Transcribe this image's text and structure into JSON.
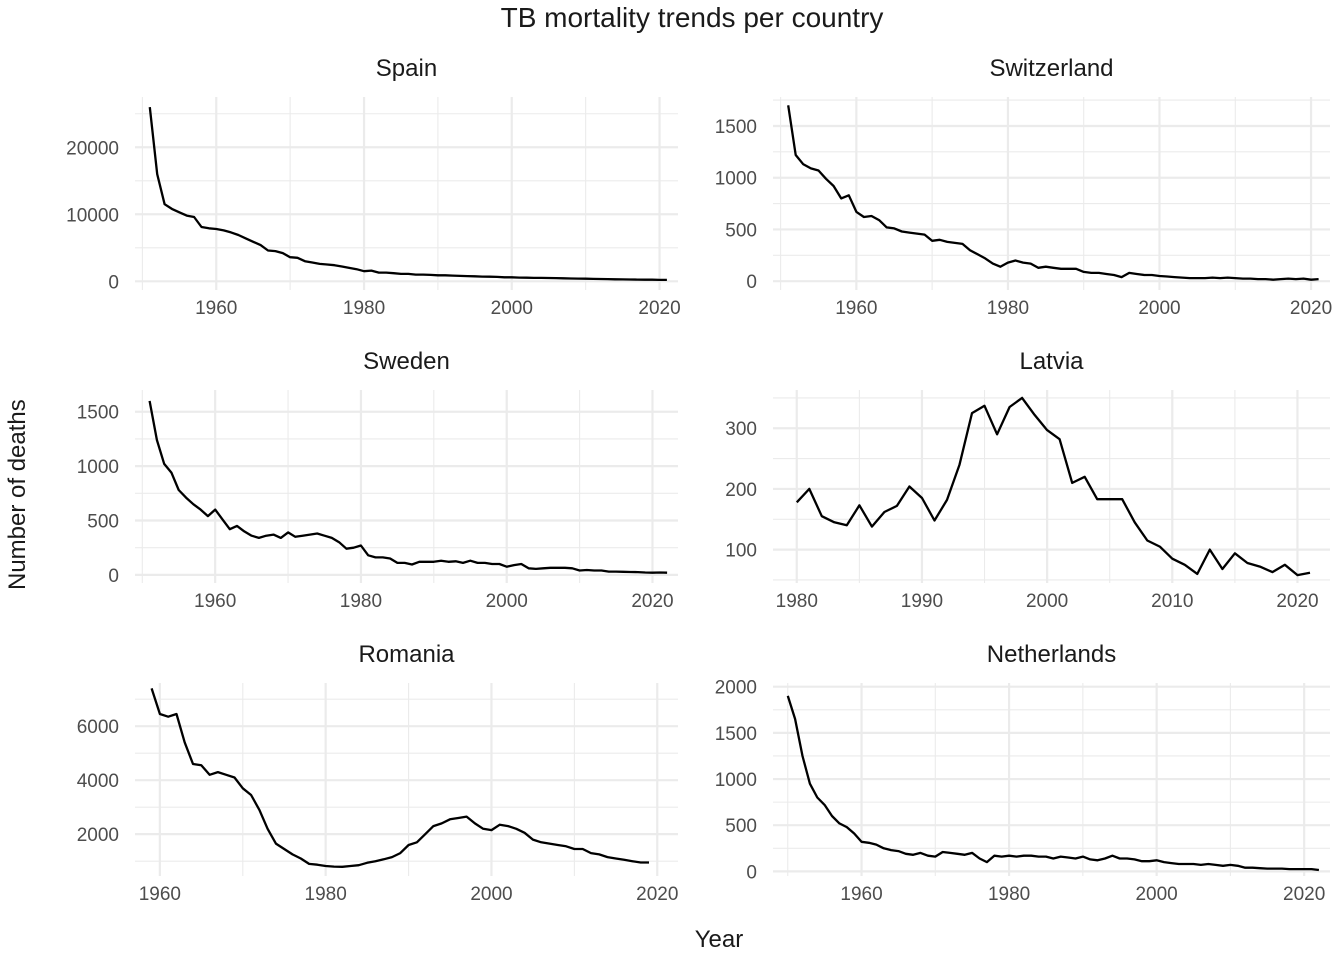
{
  "chart_data": {
    "type": "line",
    "title": "TB mortality trends per country",
    "xlabel": "Year",
    "ylabel": "Number of deaths",
    "grid": true,
    "panels": [
      {
        "name": "Spain",
        "xlim": [
          1949,
          2022.5
        ],
        "ylim": [
          -1300,
          27500
        ],
        "xticks": [
          1960,
          1980,
          2000,
          2020
        ],
        "yticks": [
          0,
          10000,
          20000
        ],
        "series": [
          {
            "x": [
              1951,
              1952,
              1953,
              1954,
              1955,
              1956,
              1957,
              1958,
              1959,
              1960,
              1961,
              1962,
              1963,
              1964,
              1965,
              1966,
              1967,
              1968,
              1969,
              1970,
              1971,
              1972,
              1973,
              1974,
              1975,
              1976,
              1977,
              1978,
              1979,
              1980,
              1981,
              1982,
              1983,
              1984,
              1985,
              1986,
              1987,
              1988,
              1989,
              1990,
              1991,
              1992,
              1993,
              1994,
              1995,
              1996,
              1997,
              1998,
              1999,
              2000,
              2001,
              2002,
              2003,
              2004,
              2005,
              2006,
              2007,
              2008,
              2009,
              2010,
              2011,
              2012,
              2013,
              2014,
              2015,
              2016,
              2017,
              2018,
              2019,
              2020,
              2021
            ],
            "y": [
              26000,
              16000,
              11500,
              10800,
              10300,
              9800,
              9600,
              8100,
              7900,
              7800,
              7600,
              7300,
              6900,
              6400,
              5900,
              5400,
              4600,
              4500,
              4200,
              3600,
              3500,
              3000,
              2800,
              2600,
              2500,
              2400,
              2200,
              2000,
              1800,
              1500,
              1600,
              1300,
              1300,
              1200,
              1100,
              1100,
              1000,
              1000,
              950,
              900,
              900,
              850,
              800,
              780,
              750,
              700,
              680,
              650,
              600,
              600,
              550,
              530,
              510,
              500,
              490,
              470,
              450,
              420,
              400,
              380,
              360,
              340,
              320,
              300,
              280,
              260,
              250,
              240,
              230,
              210,
              200
            ]
          }
        ]
      },
      {
        "name": "Switzerland",
        "xlim": [
          1949,
          2022.5
        ],
        "ylim": [
          -85,
          1780
        ],
        "xticks": [
          1960,
          1980,
          2000,
          2020
        ],
        "yticks": [
          0,
          500,
          1000,
          1500
        ],
        "series": [
          {
            "x": [
              1951,
              1952,
              1953,
              1954,
              1955,
              1956,
              1957,
              1958,
              1959,
              1960,
              1961,
              1962,
              1963,
              1964,
              1965,
              1966,
              1967,
              1968,
              1969,
              1970,
              1971,
              1972,
              1973,
              1974,
              1975,
              1976,
              1977,
              1978,
              1979,
              1980,
              1981,
              1982,
              1983,
              1984,
              1985,
              1986,
              1987,
              1988,
              1989,
              1990,
              1991,
              1992,
              1993,
              1994,
              1995,
              1996,
              1997,
              1998,
              1999,
              2000,
              2001,
              2002,
              2003,
              2004,
              2005,
              2006,
              2007,
              2008,
              2009,
              2010,
              2011,
              2012,
              2013,
              2014,
              2015,
              2016,
              2017,
              2018,
              2019,
              2020,
              2021
            ],
            "y": [
              1700,
              1220,
              1130,
              1090,
              1070,
              990,
              920,
              800,
              830,
              670,
              620,
              630,
              590,
              520,
              510,
              480,
              470,
              460,
              450,
              390,
              400,
              380,
              370,
              360,
              300,
              260,
              220,
              170,
              140,
              180,
              200,
              180,
              170,
              130,
              140,
              130,
              120,
              120,
              120,
              90,
              80,
              80,
              70,
              60,
              40,
              80,
              70,
              60,
              60,
              50,
              45,
              40,
              35,
              30,
              30,
              30,
              35,
              30,
              35,
              30,
              25,
              25,
              20,
              20,
              15,
              20,
              25,
              20,
              25,
              15,
              20
            ]
          }
        ]
      },
      {
        "name": "Sweden",
        "xlim": [
          1949,
          2023.5
        ],
        "ylim": [
          -75,
          1700
        ],
        "xticks": [
          1960,
          1980,
          2000,
          2020
        ],
        "yticks": [
          0,
          500,
          1000,
          1500
        ],
        "series": [
          {
            "x": [
              1951,
              1952,
              1953,
              1954,
              1955,
              1956,
              1957,
              1958,
              1959,
              1960,
              1961,
              1962,
              1963,
              1964,
              1965,
              1966,
              1967,
              1968,
              1969,
              1970,
              1971,
              1972,
              1973,
              1974,
              1975,
              1976,
              1977,
              1978,
              1979,
              1980,
              1981,
              1982,
              1983,
              1984,
              1985,
              1986,
              1987,
              1988,
              1989,
              1990,
              1991,
              1992,
              1993,
              1994,
              1995,
              1996,
              1997,
              1998,
              1999,
              2000,
              2001,
              2002,
              2003,
              2004,
              2005,
              2006,
              2007,
              2008,
              2009,
              2010,
              2011,
              2012,
              2013,
              2014,
              2015,
              2016,
              2017,
              2018,
              2019,
              2020,
              2021,
              2022
            ],
            "y": [
              1600,
              1240,
              1020,
              940,
              780,
              710,
              650,
              600,
              540,
              600,
              510,
              420,
              450,
              400,
              360,
              340,
              360,
              370,
              340,
              390,
              350,
              360,
              370,
              380,
              360,
              340,
              300,
              240,
              250,
              270,
              180,
              160,
              160,
              150,
              110,
              110,
              95,
              120,
              120,
              120,
              130,
              120,
              125,
              110,
              130,
              110,
              110,
              100,
              100,
              75,
              90,
              100,
              60,
              55,
              60,
              65,
              65,
              65,
              60,
              40,
              45,
              40,
              40,
              30,
              30,
              28,
              26,
              25,
              22,
              20,
              22,
              20
            ]
          }
        ]
      },
      {
        "name": "Latvia",
        "xlim": [
          1978.1,
          2022.6
        ],
        "ylim": [
          45,
          363
        ],
        "xticks": [
          1980,
          1990,
          2000,
          2010,
          2020
        ],
        "yticks": [
          100,
          200,
          300
        ],
        "series": [
          {
            "x": [
              1980,
              1981,
              1982,
              1983,
              1984,
              1985,
              1986,
              1987,
              1988,
              1989,
              1990,
              1991,
              1992,
              1993,
              1994,
              1995,
              1996,
              1997,
              1998,
              1999,
              2000,
              2001,
              2002,
              2003,
              2004,
              2005,
              2006,
              2007,
              2008,
              2009,
              2010,
              2011,
              2012,
              2013,
              2014,
              2015,
              2016,
              2017,
              2018,
              2019,
              2020,
              2021
            ],
            "y": [
              178,
              200,
              155,
              145,
              140,
              173,
              138,
              162,
              172,
              204,
              185,
              148,
              182,
              240,
              325,
              337,
              290,
              335,
              350,
              322,
              297,
              282,
              210,
              220,
              183,
              183,
              183,
              145,
              115,
              105,
              85,
              75,
              60,
              100,
              68,
              94,
              78,
              72,
              63,
              75,
              58,
              62
            ]
          }
        ]
      },
      {
        "name": "Romania",
        "xlim": [
          1957,
          2022.5
        ],
        "ylim": [
          450,
          7600
        ],
        "xticks": [
          1960,
          1980,
          2000,
          2020
        ],
        "yticks": [
          2000,
          4000,
          6000
        ],
        "series": [
          {
            "x": [
              1959,
              1960,
              1961,
              1962,
              1963,
              1964,
              1965,
              1966,
              1967,
              1968,
              1969,
              1970,
              1971,
              1972,
              1973,
              1974,
              1975,
              1976,
              1977,
              1978,
              1979,
              1980,
              1981,
              1982,
              1983,
              1984,
              1985,
              1986,
              1987,
              1988,
              1989,
              1990,
              1991,
              1992,
              1993,
              1994,
              1995,
              1996,
              1997,
              1998,
              1999,
              2000,
              2001,
              2002,
              2003,
              2004,
              2005,
              2006,
              2007,
              2008,
              2009,
              2010,
              2011,
              2012,
              2013,
              2014,
              2015,
              2016,
              2017,
              2018,
              2019
            ],
            "y": [
              7400,
              6450,
              6350,
              6450,
              5400,
              4600,
              4550,
              4200,
              4300,
              4200,
              4100,
              3700,
              3450,
              2900,
              2200,
              1650,
              1450,
              1250,
              1100,
              900,
              870,
              820,
              800,
              790,
              820,
              850,
              940,
              1000,
              1070,
              1150,
              1300,
              1600,
              1700,
              2000,
              2300,
              2400,
              2550,
              2600,
              2650,
              2400,
              2200,
              2150,
              2350,
              2300,
              2200,
              2050,
              1800,
              1700,
              1650,
              1600,
              1550,
              1450,
              1450,
              1300,
              1250,
              1150,
              1100,
              1050,
              1000,
              950,
              950
            ]
          }
        ]
      },
      {
        "name": "Netherlands",
        "xlim": [
          1948,
          2023.5
        ],
        "ylim": [
          -50,
          2040
        ],
        "xticks": [
          1960,
          1980,
          2000,
          2020
        ],
        "yticks": [
          0,
          500,
          1000,
          1500,
          2000
        ],
        "series": [
          {
            "x": [
              1950,
              1951,
              1952,
              1953,
              1954,
              1955,
              1956,
              1957,
              1958,
              1959,
              1960,
              1961,
              1962,
              1963,
              1964,
              1965,
              1966,
              1967,
              1968,
              1969,
              1970,
              1971,
              1972,
              1973,
              1974,
              1975,
              1976,
              1977,
              1978,
              1979,
              1980,
              1981,
              1982,
              1983,
              1984,
              1985,
              1986,
              1987,
              1988,
              1989,
              1990,
              1991,
              1992,
              1993,
              1994,
              1995,
              1996,
              1997,
              1998,
              1999,
              2000,
              2001,
              2002,
              2003,
              2004,
              2005,
              2006,
              2007,
              2008,
              2009,
              2010,
              2011,
              2012,
              2013,
              2014,
              2015,
              2016,
              2017,
              2018,
              2019,
              2020,
              2021,
              2022
            ],
            "y": [
              1900,
              1650,
              1250,
              950,
              800,
              720,
              600,
              520,
              480,
              410,
              320,
              310,
              290,
              250,
              230,
              220,
              190,
              180,
              200,
              170,
              160,
              210,
              200,
              190,
              180,
              200,
              140,
              100,
              170,
              160,
              170,
              160,
              170,
              170,
              160,
              160,
              140,
              160,
              150,
              140,
              160,
              130,
              120,
              140,
              170,
              140,
              140,
              130,
              110,
              110,
              120,
              100,
              90,
              80,
              80,
              80,
              70,
              80,
              70,
              60,
              70,
              60,
              40,
              40,
              35,
              30,
              30,
              30,
              25,
              25,
              25,
              25,
              15
            ]
          }
        ]
      }
    ]
  }
}
